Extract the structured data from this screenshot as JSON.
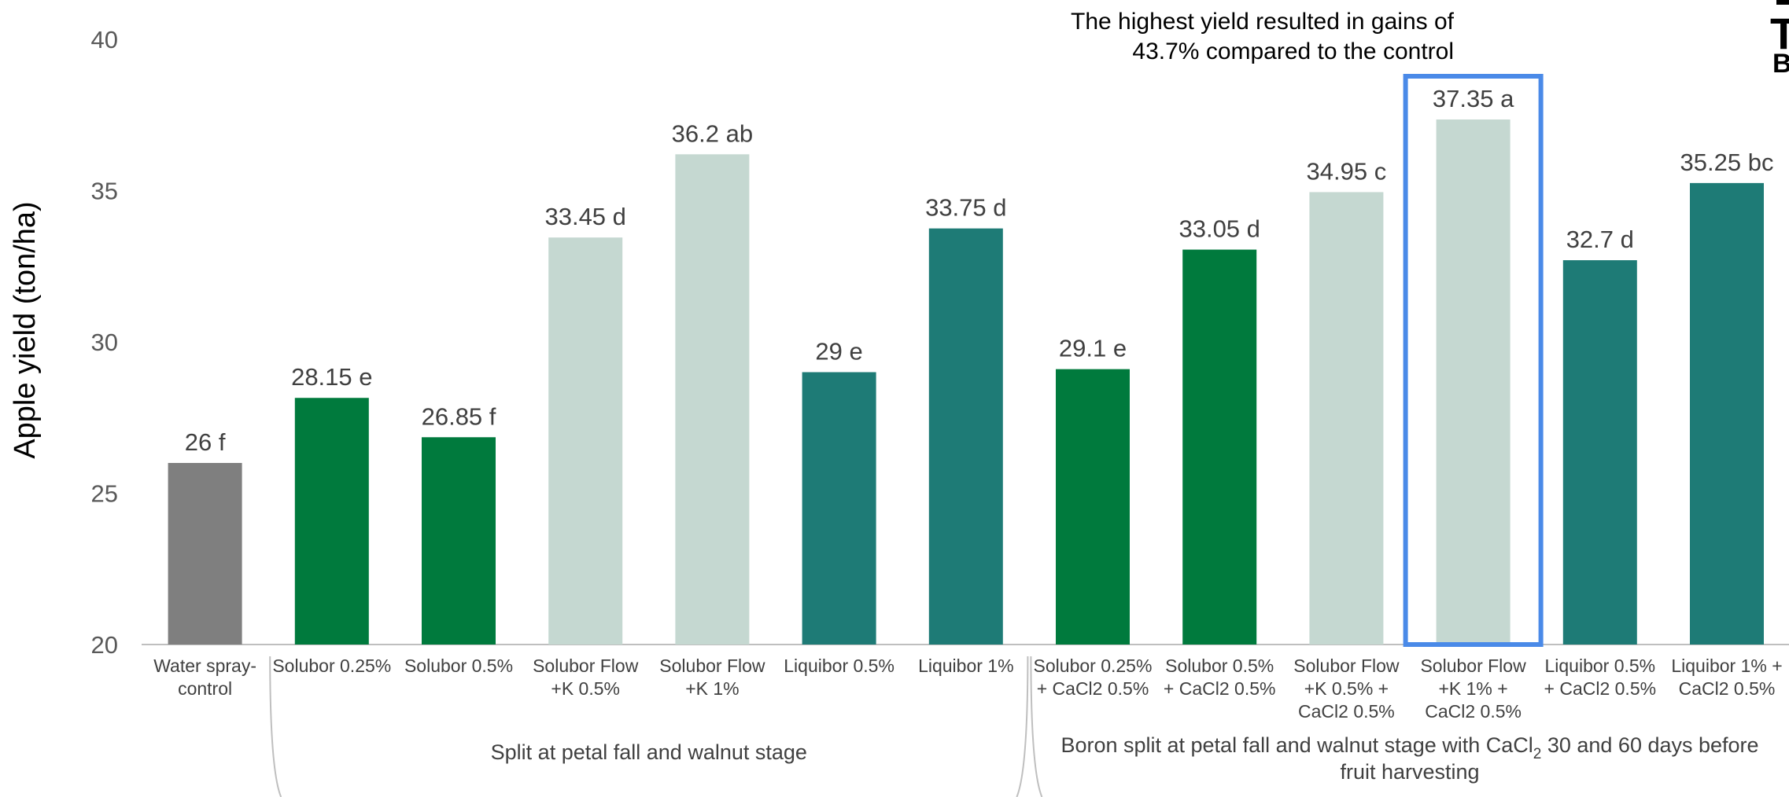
{
  "chart_data": {
    "type": "bar",
    "title": "",
    "xlabel": "",
    "ylabel": "Apple yield (ton/ha)",
    "ylim": [
      20,
      40
    ],
    "yticks": [
      "20",
      "25",
      "30",
      "35",
      "40"
    ],
    "grid": false,
    "categories": [
      [
        "Water spray-",
        "control"
      ],
      [
        "Solubor 0.25%"
      ],
      [
        "Solubor 0.5%"
      ],
      [
        "Solubor Flow",
        "+K 0.5%"
      ],
      [
        "Solubor Flow",
        "+K 1%"
      ],
      [
        "Liquibor 0.5%"
      ],
      [
        "Liquibor 1%"
      ],
      [
        "Solubor 0.25%",
        "+ CaCl2  0.5%"
      ],
      [
        "Solubor 0.5%",
        "+ CaCl2  0.5%"
      ],
      [
        "Solubor Flow",
        "+K 0.5% +",
        "CaCl2  0.5%"
      ],
      [
        "Solubor Flow",
        "+K 1% +",
        "CaCl2  0.5%"
      ],
      [
        "Liquibor 0.5%",
        "+ CaCl2 0.5%"
      ],
      [
        "Liquibor 1% +",
        "CaCl2 0.5%"
      ]
    ],
    "values": [
      26,
      28.15,
      26.85,
      33.45,
      36.2,
      29,
      33.75,
      29.1,
      33.05,
      34.95,
      37.35,
      32.7,
      35.25
    ],
    "data_labels": [
      "26 f",
      "28.15 e",
      "26.85 f",
      "33.45 d",
      "36.2 ab",
      "29 e",
      "33.75 d",
      "29.1 e",
      "33.05 d",
      "34.95 c",
      "37.35 a",
      "32.7 d",
      "35.25 bc"
    ],
    "bar_colors": [
      "#7f7f7f",
      "#007a3d",
      "#007a3d",
      "#c5d8d1",
      "#c5d8d1",
      "#1e7b76",
      "#1e7b76",
      "#007a3d",
      "#007a3d",
      "#c5d8d1",
      "#c5d8d1",
      "#1e7b76",
      "#1e7b76"
    ],
    "groups": [
      {
        "label": [
          "Split at petal fall and walnut stage"
        ],
        "from": 1,
        "to": 6
      },
      {
        "label": [
          "Boron split at petal fall and walnut stage with CaCl",
          "2",
          " 30 and 60 days before",
          "fruit harvesting"
        ],
        "from": 7,
        "to": 12
      }
    ],
    "highlight": {
      "index": 10,
      "color": "#4a8ae8",
      "note": [
        "The highest yield resulted in gains of",
        "43.7% compared to the control"
      ]
    },
    "corner_marks": [
      "T",
      "B"
    ]
  }
}
